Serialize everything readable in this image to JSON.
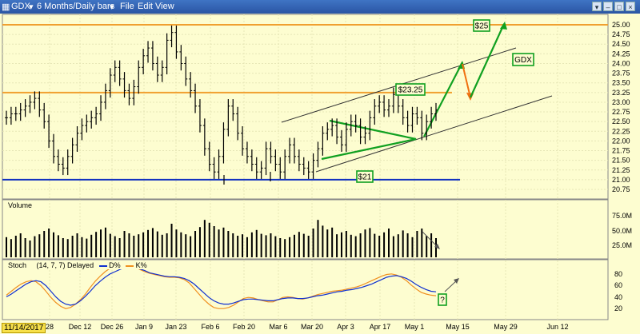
{
  "window": {
    "title": "GDX",
    "period": "6 Months/Daily bars",
    "menu": [
      "File",
      "Edit",
      "View"
    ]
  },
  "price_axis": [
    "25.00",
    "24.75",
    "24.50",
    "24.25",
    "24.00",
    "23.75",
    "23.50",
    "23.25",
    "23.00",
    "22.75",
    "22.50",
    "22.25",
    "22.00",
    "21.75",
    "21.50",
    "21.25",
    "21.00",
    "20.75"
  ],
  "volume_panel": {
    "label": "Volume",
    "axis": [
      "75.0M",
      "50.0M",
      "25.0M"
    ]
  },
  "stoch_panel": {
    "label": "Stoch",
    "params": "(14, 7, 7) Delayed",
    "d_label": "D%",
    "k_label": "K%",
    "axis": [
      "80",
      "60",
      "40",
      "20"
    ]
  },
  "date_axis": [
    "28",
    "Dec 12",
    "Dec 26",
    "Jan 9",
    "Jan 23",
    "Feb 6",
    "Feb 20",
    "Mar 6",
    "Mar 20",
    "Apr 3",
    "Apr 17",
    "May 1",
    "May 15",
    "May 29",
    "Jun 12"
  ],
  "cursor_date": "11/14/2017",
  "annotations": {
    "level_25": "$25",
    "level_2325": "$23.25",
    "level_21": "$21",
    "symbol_box": "GDX",
    "stoch_question": "?"
  },
  "colors": {
    "background": "#fdfdd0",
    "resistance": "#f0a030",
    "support": "#1030c0",
    "pattern": "#10a020",
    "projection_down": "#f07010",
    "d_line": "#1030d0",
    "k_line": "#f09020"
  },
  "chart_data": [
    {
      "type": "ohlc",
      "series": "GDX daily",
      "ylim": [
        20.7,
        25.1
      ],
      "horizontal_levels": [
        25.0,
        23.25,
        21.0
      ],
      "close": [
        22.6,
        22.7,
        22.7,
        22.8,
        22.9,
        23.0,
        23.1,
        22.8,
        22.5,
        22.0,
        21.6,
        21.4,
        21.3,
        21.6,
        21.9,
        22.2,
        22.4,
        22.5,
        22.6,
        22.7,
        23.0,
        23.3,
        23.7,
        23.9,
        23.6,
        23.3,
        23.1,
        23.4,
        23.9,
        24.2,
        24.4,
        24.0,
        23.7,
        23.9,
        24.6,
        24.8,
        24.3,
        24.0,
        23.6,
        23.3,
        22.9,
        22.4,
        21.8,
        21.4,
        21.2,
        21.6,
        22.3,
        22.9,
        22.7,
        22.2,
        21.8,
        21.6,
        21.4,
        21.2,
        21.3,
        21.8,
        21.6,
        21.4,
        21.2,
        21.6,
        21.9,
        21.6,
        21.4,
        21.3,
        21.2,
        21.5,
        21.8,
        22.2,
        22.3,
        22.4,
        22.1,
        21.9,
        22.3,
        22.5,
        22.4,
        22.1,
        22.2,
        22.6,
        22.9,
        23.0,
        22.8,
        22.9,
        23.2,
        22.9,
        22.6,
        22.4,
        22.7,
        22.6,
        22.2,
        22.5,
        22.7,
        22.8
      ]
    },
    {
      "type": "bar",
      "series": "Volume",
      "ylim": [
        0,
        100
      ],
      "values": [
        42,
        38,
        45,
        50,
        40,
        35,
        44,
        48,
        55,
        60,
        52,
        46,
        40,
        38,
        45,
        50,
        42,
        39,
        47,
        53,
        58,
        62,
        49,
        44,
        40,
        55,
        50,
        45,
        48,
        52,
        57,
        61,
        54,
        47,
        50,
        70,
        58,
        52,
        48,
        44,
        55,
        63,
        78,
        72,
        65,
        58,
        62,
        55,
        50,
        45,
        48,
        42,
        52,
        57,
        49,
        46,
        50,
        44,
        40,
        38,
        42,
        47,
        53,
        49,
        45,
        60,
        78,
        66,
        58,
        62,
        48,
        52,
        55,
        47,
        44,
        50,
        58,
        61,
        49,
        45,
        52,
        60,
        44,
        48,
        56,
        50,
        42,
        55,
        60,
        45,
        50,
        40
      ]
    },
    {
      "type": "line",
      "series": [
        "D%",
        "K%"
      ],
      "ylim": [
        0,
        100
      ],
      "D": [
        35,
        40,
        46,
        52,
        58,
        62,
        64,
        62,
        55,
        45,
        35,
        27,
        22,
        20,
        22,
        28,
        36,
        45,
        55,
        63,
        70,
        76,
        80,
        84,
        87,
        88,
        87,
        85,
        82,
        78,
        76,
        74,
        72,
        71,
        71,
        70,
        68,
        64,
        58,
        50,
        42,
        34,
        28,
        24,
        22,
        22,
        24,
        27,
        30,
        31,
        31,
        30,
        29,
        28,
        28,
        30,
        32,
        33,
        33,
        32,
        32,
        33,
        35,
        37,
        38,
        40,
        42,
        44,
        45,
        47,
        48,
        50,
        52,
        55,
        58,
        62,
        66,
        70,
        72,
        73,
        71,
        68,
        63,
        57,
        52,
        48,
        45,
        44
      ],
      "K": [
        38,
        45,
        52,
        58,
        62,
        64,
        62,
        55,
        45,
        34,
        25,
        18,
        14,
        16,
        22,
        30,
        40,
        52,
        63,
        72,
        80,
        86,
        90,
        92,
        93,
        91,
        88,
        84,
        80,
        77,
        75,
        73,
        71,
        70,
        70,
        69,
        66,
        60,
        50,
        40,
        30,
        22,
        16,
        14,
        14,
        16,
        20,
        26,
        32,
        34,
        33,
        30,
        28,
        26,
        26,
        30,
        34,
        35,
        34,
        32,
        31,
        33,
        36,
        39,
        41,
        43,
        45,
        46,
        47,
        49,
        51,
        53,
        56,
        60,
        64,
        68,
        72,
        75,
        76,
        74,
        70,
        64,
        56,
        49,
        43,
        40,
        38,
        37
      ]
    }
  ]
}
